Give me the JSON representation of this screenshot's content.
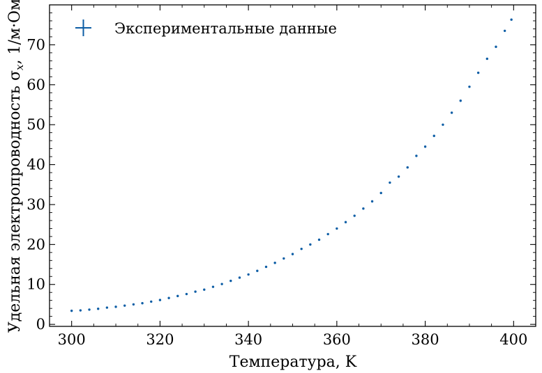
{
  "chart_data": {
    "type": "scatter",
    "xlabel": "Температура, K",
    "ylabel": "Удельная электропроводность σ",
    "ylabel_subscript": "x",
    "ylabel_unit": ", 1/м·Ом",
    "xlim": [
      295,
      405
    ],
    "ylim": [
      -0.5,
      80
    ],
    "x_ticks": [
      300,
      320,
      340,
      360,
      380,
      400
    ],
    "y_ticks": [
      0,
      10,
      20,
      30,
      40,
      50,
      60,
      70
    ],
    "x_minor_step": 5,
    "y_minor_step": 2,
    "grid": false,
    "legend_position": "top-left",
    "series": [
      {
        "name": "Экспериментальные данные",
        "color": "#0C5DA5",
        "points": [
          [
            300,
            3.4
          ],
          [
            302,
            3.5
          ],
          [
            304,
            3.7
          ],
          [
            306,
            3.9
          ],
          [
            308,
            4.2
          ],
          [
            310,
            4.4
          ],
          [
            312,
            4.7
          ],
          [
            314,
            5.0
          ],
          [
            316,
            5.3
          ],
          [
            318,
            5.7
          ],
          [
            320,
            6.1
          ],
          [
            322,
            6.6
          ],
          [
            324,
            7.1
          ],
          [
            326,
            7.6
          ],
          [
            328,
            8.2
          ],
          [
            330,
            8.7
          ],
          [
            332,
            9.4
          ],
          [
            334,
            10.1
          ],
          [
            336,
            10.9
          ],
          [
            338,
            11.7
          ],
          [
            340,
            12.5
          ],
          [
            342,
            13.4
          ],
          [
            344,
            14.4
          ],
          [
            346,
            15.4
          ],
          [
            348,
            16.5
          ],
          [
            350,
            17.6
          ],
          [
            352,
            18.9
          ],
          [
            354,
            20.0
          ],
          [
            356,
            21.2
          ],
          [
            358,
            22.6
          ],
          [
            360,
            24.0
          ],
          [
            362,
            25.6
          ],
          [
            364,
            27.2
          ],
          [
            366,
            29.0
          ],
          [
            368,
            30.8
          ],
          [
            370,
            32.9
          ],
          [
            372,
            35.5
          ],
          [
            374,
            37.0
          ],
          [
            376,
            39.3
          ],
          [
            378,
            42.2
          ],
          [
            380,
            44.5
          ],
          [
            382,
            47.2
          ],
          [
            384,
            50.0
          ],
          [
            386,
            53.0
          ],
          [
            388,
            56.0
          ],
          [
            390,
            59.5
          ],
          [
            392,
            63.0
          ],
          [
            394,
            66.5
          ],
          [
            396,
            69.5
          ],
          [
            398,
            73.5
          ],
          [
            399.5,
            76.3
          ]
        ]
      }
    ]
  }
}
